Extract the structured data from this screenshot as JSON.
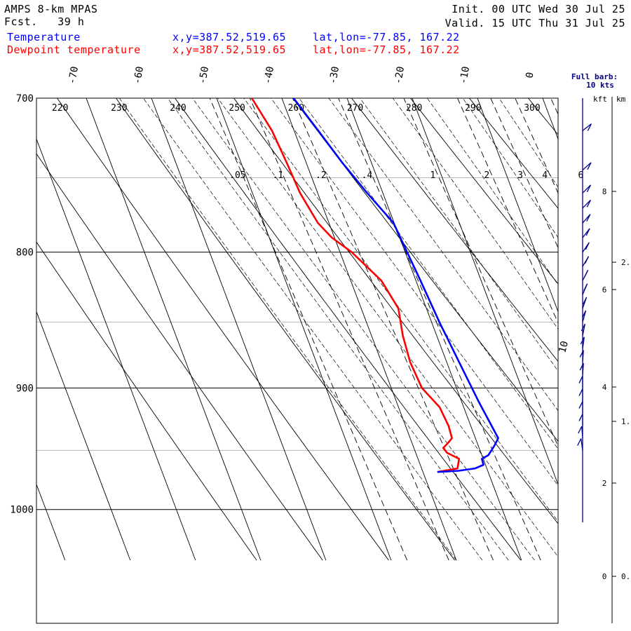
{
  "header": {
    "model": "AMPS 8-km MPAS",
    "fcst_label": "Fcst.",
    "fcst_value": "39 h",
    "init": "Init. 00 UTC Wed 30 Jul 25",
    "valid": "Valid. 15 UTC Thu 31 Jul 25",
    "temp_label": "Temperature",
    "dew_label": "Dewpoint temperature",
    "temp_xy": "x,y=387.52,519.65",
    "dew_xy": "x,y=387.52,519.65",
    "temp_latlon": "lat,lon=-77.85, 167.22",
    "dew_latlon": "lat,lon=-77.85, 167.22",
    "barb_title": "Full barb:",
    "barb_units": "10 kts",
    "kft_label": "kft",
    "km_label": "km"
  },
  "colors": {
    "temperature": "#0000ff",
    "dewpoint": "#ff0000",
    "barb": "#00008b"
  },
  "chart_data": {
    "type": "skew-t",
    "p_range": [
      1045,
      700
    ],
    "pressure_labels": [
      "700",
      "800",
      "900",
      "1000"
    ],
    "temp_ticks": [
      {
        "t": -70,
        "label": "-70"
      },
      {
        "t": -60,
        "label": "-60"
      },
      {
        "t": -50,
        "label": "-50"
      },
      {
        "t": -40,
        "label": "-40"
      },
      {
        "t": -30,
        "label": "-30"
      },
      {
        "t": -20,
        "label": "-20"
      },
      {
        "t": -10,
        "label": "-10"
      },
      {
        "t": 0,
        "label": "0"
      }
    ],
    "theta_labels": [
      {
        "t": 220,
        "label": "220"
      },
      {
        "t": 230,
        "label": "230"
      },
      {
        "t": 240,
        "label": "240"
      },
      {
        "t": 250,
        "label": "250"
      },
      {
        "t": 260,
        "label": "260"
      },
      {
        "t": 270,
        "label": "270"
      },
      {
        "t": 280,
        "label": "280"
      },
      {
        "t": 290,
        "label": "290"
      },
      {
        "t": 300,
        "label": "300"
      }
    ],
    "mixing_ratio_labels": [
      ".05",
      ".1",
      ".2",
      ".4",
      "1",
      "2",
      "3",
      "4",
      "6"
    ],
    "mixing_ratios": [
      0.05,
      0.1,
      0.2,
      0.4,
      1,
      2,
      3,
      4,
      6
    ],
    "kft_ticks": [
      {
        "v": 0,
        "label": "0"
      },
      {
        "v": 2,
        "label": "2"
      },
      {
        "v": 4,
        "label": "4"
      },
      {
        "v": 6,
        "label": "6"
      },
      {
        "v": 8,
        "label": "8"
      }
    ],
    "km_ticks": [
      {
        "v": 0,
        "label": "0."
      },
      {
        "v": 1,
        "label": "1."
      },
      {
        "v": 2,
        "label": "2."
      }
    ],
    "barb_speed_label": "10",
    "temperature": {
      "name": "Temperature",
      "p": [
        968,
        967,
        965,
        962,
        957,
        954,
        946,
        940,
        930,
        910,
        880,
        850,
        820,
        800,
        780,
        760,
        740,
        720,
        700
      ],
      "t": [
        -37.8,
        -34.5,
        -31.8,
        -30.3,
        -30.2,
        -29.0,
        -27.5,
        -26.5,
        -26.8,
        -27.4,
        -28.1,
        -28.8,
        -29.3,
        -29.7,
        -30.1,
        -32.4,
        -34.5,
        -36.3,
        -38.2
      ]
    },
    "dewpoint": {
      "name": "Dewpoint temperature",
      "p": [
        968,
        965,
        957,
        952,
        948,
        944,
        940,
        930,
        915,
        900,
        880,
        860,
        840,
        820,
        800,
        790,
        780,
        760,
        740,
        720,
        700
      ],
      "t": [
        -37.8,
        -34.5,
        -33.7,
        -35.2,
        -35.5,
        -34.5,
        -33.6,
        -33.4,
        -33.7,
        -35.3,
        -35.6,
        -35.2,
        -34.3,
        -35.3,
        -38.2,
        -40.4,
        -41.7,
        -42.7,
        -43.0,
        -43.4,
        -44.6
      ]
    },
    "barbs": [
      {
        "p": 950,
        "dir": 260,
        "spd": 10
      },
      {
        "p": 940,
        "dir": 265,
        "spd": 10
      },
      {
        "p": 930,
        "dir": 270,
        "spd": 10
      },
      {
        "p": 920,
        "dir": 270,
        "spd": 10
      },
      {
        "p": 910,
        "dir": 270,
        "spd": 10
      },
      {
        "p": 900,
        "dir": 270,
        "spd": 10
      },
      {
        "p": 890,
        "dir": 275,
        "spd": 10
      },
      {
        "p": 880,
        "dir": 275,
        "spd": 10
      },
      {
        "p": 870,
        "dir": 280,
        "spd": 10
      },
      {
        "p": 860,
        "dir": 285,
        "spd": 10
      },
      {
        "p": 850,
        "dir": 290,
        "spd": 10
      },
      {
        "p": 840,
        "dir": 295,
        "spd": 10
      },
      {
        "p": 830,
        "dir": 300,
        "spd": 10
      },
      {
        "p": 820,
        "dir": 305,
        "spd": 10
      },
      {
        "p": 810,
        "dir": 310,
        "spd": 10
      },
      {
        "p": 800,
        "dir": 315,
        "spd": 10
      },
      {
        "p": 790,
        "dir": 320,
        "spd": 10
      },
      {
        "p": 780,
        "dir": 325,
        "spd": 10
      },
      {
        "p": 770,
        "dir": 330,
        "spd": 10
      },
      {
        "p": 760,
        "dir": 330,
        "spd": 10
      },
      {
        "p": 745,
        "dir": 335,
        "spd": 10
      },
      {
        "p": 720,
        "dir": 340,
        "spd": 10
      }
    ]
  }
}
